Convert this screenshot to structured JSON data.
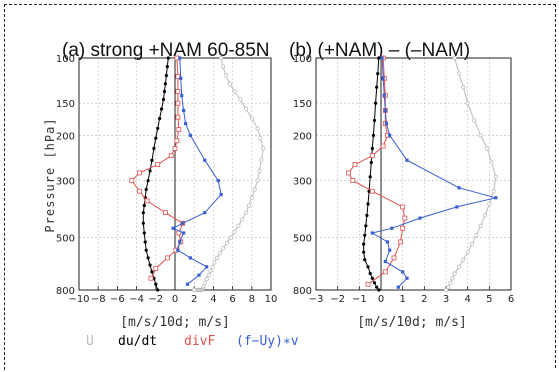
{
  "colors": {
    "U": "#bbbbbb",
    "dudt": "#000000",
    "divF": "#e05050",
    "fUyv": "#3a5fd0",
    "grid": "#bbbbbb"
  },
  "legend": {
    "U": "U",
    "dudt": "du/dt",
    "divF": "divF",
    "fUyv": "(f−Uy)∗v"
  },
  "ylabel": "Pressure [hPa]",
  "chart_data": [
    {
      "type": "line",
      "title": "(a) strong +NAM   60-85N",
      "xlabel": "[m/s/10d; m/s]",
      "xlim": [
        -10,
        10
      ],
      "xticks": [
        -10,
        -8,
        -6,
        -4,
        -2,
        0,
        2,
        4,
        6,
        8,
        10
      ],
      "xticklabels": [
        "−10",
        "−8",
        "−6",
        "−4",
        "−2",
        "0",
        "2",
        "4",
        "6",
        "8",
        "10"
      ],
      "yscale": "log",
      "ylim": [
        100,
        800
      ],
      "yticks": [
        100,
        150,
        200,
        300,
        500,
        800
      ],
      "series": [
        {
          "name": "U",
          "x": [
            4.8,
            5.0,
            5.3,
            5.7,
            6.2,
            6.8,
            7.4,
            8.0,
            8.6,
            8.9,
            9.2,
            9.0,
            8.8,
            8.6,
            8.3,
            8.0,
            7.7,
            7.4,
            7.0,
            6.6,
            6.2,
            5.8,
            5.4,
            5.0,
            4.7,
            4.4,
            4.1,
            3.9,
            3.7,
            3.5,
            3.3,
            3.1,
            3.0,
            2.9,
            2.8,
            2.7,
            2.6,
            2.5,
            2.4,
            2.3,
            2.2,
            2.1,
            2.0
          ],
          "y": [
            100,
            108,
            117,
            126,
            135,
            145,
            158,
            172,
            188,
            205,
            225,
            250,
            275,
            300,
            325,
            350,
            375,
            400,
            425,
            450,
            475,
            500,
            525,
            550,
            575,
            600,
            625,
            650,
            675,
            700,
            725,
            750,
            775,
            790,
            800,
            800,
            800,
            800,
            800,
            800,
            800,
            800,
            800
          ]
        },
        {
          "name": "du/dt",
          "x": [
            -0.7,
            -0.8,
            -0.9,
            -1.0,
            -1.1,
            -1.2,
            -1.4,
            -1.6,
            -1.8,
            -2.0,
            -2.2,
            -2.4,
            -2.6,
            -2.8,
            -3.0,
            -3.1,
            -3.2,
            -3.3,
            -3.3,
            -3.2,
            -3.1,
            -3.0,
            -2.8,
            -2.6,
            -2.4,
            -2.2,
            -2.0,
            -1.8
          ],
          "y": [
            100,
            108,
            117,
            126,
            135,
            145,
            158,
            172,
            188,
            205,
            225,
            250,
            275,
            300,
            325,
            350,
            375,
            400,
            440,
            480,
            520,
            560,
            600,
            640,
            680,
            720,
            760,
            800
          ]
        },
        {
          "name": "divF",
          "x": [
            0.2,
            0.3,
            0.3,
            0.3,
            0.3,
            0.4,
            0.2,
            0.0,
            -0.4,
            -1.8,
            -3.7,
            -4.5,
            -3.7,
            -2.9,
            -1.0,
            0.8,
            0.4,
            0.6,
            0.1,
            -0.8,
            -2.0,
            -2.5
          ],
          "y": [
            100,
            118,
            135,
            150,
            170,
            190,
            210,
            225,
            240,
            260,
            280,
            300,
            330,
            360,
            400,
            440,
            480,
            520,
            560,
            600,
            660,
            720
          ]
        },
        {
          "name": "(f−Uy)∗v",
          "x": [
            0.5,
            0.6,
            0.7,
            0.9,
            1.1,
            1.6,
            3.1,
            4.5,
            4.8,
            3.1,
            0.8,
            -0.2,
            0.9,
            0.5,
            0.3,
            1.6,
            3.3,
            2.5,
            1.3
          ],
          "y": [
            100,
            120,
            140,
            160,
            180,
            200,
            250,
            300,
            340,
            400,
            440,
            460,
            480,
            520,
            560,
            600,
            650,
            700,
            760
          ]
        }
      ]
    },
    {
      "type": "line",
      "title": "(b) (+NAM) – (–NAM)",
      "xlabel": "[m/s/10d; m/s]",
      "xlim": [
        -3,
        6
      ],
      "xticks": [
        -3,
        -2,
        -1,
        0,
        1,
        2,
        3,
        4,
        5,
        6
      ],
      "xticklabels": [
        "−3",
        "−2",
        "−1",
        "0",
        "1",
        "2",
        "3",
        "4",
        "5",
        "6"
      ],
      "yscale": "log",
      "ylim": [
        100,
        800
      ],
      "yticks": [
        100,
        150,
        200,
        300,
        500,
        800
      ],
      "series": [
        {
          "name": "U",
          "x": [
            3.4,
            3.6,
            3.8,
            4.0,
            4.3,
            4.6,
            4.9,
            5.1,
            5.3,
            5.2,
            5.0,
            4.8,
            4.6,
            4.4,
            4.2,
            4.0,
            3.8,
            3.6,
            3.4,
            3.3,
            3.2,
            3.1,
            3.0
          ],
          "y": [
            100,
            115,
            130,
            150,
            175,
            200,
            225,
            255,
            290,
            330,
            370,
            410,
            450,
            490,
            530,
            570,
            610,
            650,
            690,
            720,
            750,
            780,
            800
          ]
        },
        {
          "name": "du/dt",
          "x": [
            -0.1,
            -0.15,
            -0.2,
            -0.25,
            -0.3,
            -0.35,
            -0.4,
            -0.45,
            -0.5,
            -0.55,
            -0.6,
            -0.65,
            -0.7,
            -0.75,
            -0.8,
            -0.8,
            -0.75,
            -0.6,
            -0.5,
            -0.4,
            -0.3,
            -0.2,
            -0.1
          ],
          "y": [
            100,
            115,
            130,
            150,
            175,
            200,
            225,
            255,
            290,
            330,
            370,
            410,
            450,
            490,
            530,
            570,
            610,
            650,
            690,
            720,
            750,
            780,
            800
          ]
        },
        {
          "name": "divF",
          "x": [
            0.1,
            0.15,
            0.2,
            0.2,
            0.2,
            0.3,
            0.1,
            -0.4,
            -1.2,
            -1.5,
            -1.3,
            -0.4,
            1.0,
            1.1,
            1.0,
            0.9,
            0.6,
            0.2,
            -0.6
          ],
          "y": [
            100,
            120,
            140,
            160,
            180,
            200,
            220,
            240,
            260,
            280,
            300,
            330,
            380,
            420,
            460,
            520,
            600,
            680,
            760
          ]
        },
        {
          "name": "(f−Uy)∗v",
          "x": [
            0.05,
            0.1,
            0.15,
            0.2,
            0.25,
            0.4,
            1.2,
            3.6,
            5.3,
            3.5,
            1.8,
            0.5,
            -0.4,
            0.3,
            0.4,
            0.2,
            1.0,
            1.2,
            0.8
          ],
          "y": [
            100,
            120,
            140,
            160,
            180,
            200,
            250,
            320,
            350,
            380,
            420,
            460,
            480,
            520,
            560,
            620,
            680,
            720,
            780
          ]
        }
      ]
    }
  ]
}
